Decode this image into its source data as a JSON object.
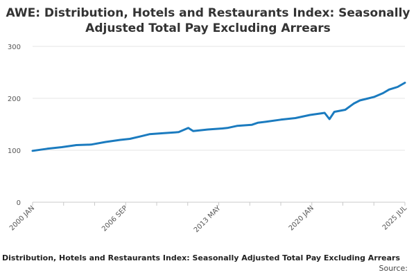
{
  "chart_data": {
    "type": "line",
    "title_lines": [
      "AWE: Distribution, Hotels and Restaurants Index: Seasonally",
      "Adjusted Total Pay Excluding Arrears"
    ],
    "x_ticks": [
      "2000 JAN",
      "2006 SEP",
      "2013 MAY",
      "2020 JAN",
      "2025 JUL"
    ],
    "y_ticks": [
      0,
      100,
      200,
      300
    ],
    "ylim": [
      0,
      300
    ],
    "xlim": [
      "2000-01",
      "2025-07"
    ],
    "grid": true,
    "legend_position": "bottom",
    "legend_label": "Distribution, Hotels and Restaurants Index: Seasonally Adjusted Total Pay Excluding Arrears",
    "source_label": "Source:",
    "series": [
      {
        "color": "#1b7bbf",
        "points": [
          [
            "2000-01",
            99
          ],
          [
            "2001-01",
            103
          ],
          [
            "2002-01",
            106
          ],
          [
            "2003-01",
            110
          ],
          [
            "2004-01",
            111
          ],
          [
            "2005-01",
            116
          ],
          [
            "2006-01",
            120
          ],
          [
            "2006-09",
            122
          ],
          [
            "2007-06",
            127
          ],
          [
            "2008-01",
            131
          ],
          [
            "2009-01",
            133
          ],
          [
            "2010-01",
            135
          ],
          [
            "2010-09",
            143
          ],
          [
            "2011-01",
            137
          ],
          [
            "2012-01",
            140
          ],
          [
            "2013-01",
            142
          ],
          [
            "2013-05",
            143
          ],
          [
            "2014-01",
            147
          ],
          [
            "2015-01",
            149
          ],
          [
            "2015-06",
            153
          ],
          [
            "2016-01",
            155
          ],
          [
            "2017-01",
            159
          ],
          [
            "2018-01",
            162
          ],
          [
            "2019-01",
            168
          ],
          [
            "2020-01",
            172
          ],
          [
            "2020-05",
            160
          ],
          [
            "2020-09",
            174
          ],
          [
            "2021-06",
            178
          ],
          [
            "2022-01",
            190
          ],
          [
            "2022-06",
            196
          ],
          [
            "2023-01",
            200
          ],
          [
            "2023-06",
            203
          ],
          [
            "2024-01",
            210
          ],
          [
            "2024-06",
            217
          ],
          [
            "2025-01",
            222
          ],
          [
            "2025-07",
            230
          ]
        ]
      }
    ]
  }
}
